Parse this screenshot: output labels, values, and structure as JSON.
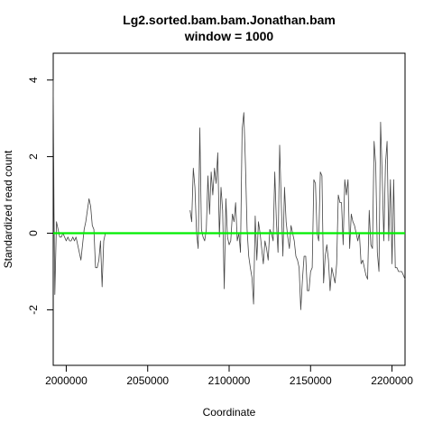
{
  "chart_data": {
    "type": "line",
    "title": "Lg2.sorted.bam.bam.Jonathan.bam",
    "subtitle": "window = 1000",
    "xlabel": "Coordinate",
    "ylabel": "Standardized read count",
    "xlim": [
      1992000,
      2208000
    ],
    "ylim": [
      -3.45,
      4.7
    ],
    "xticks": [
      2000000,
      2050000,
      2100000,
      2150000,
      2200000
    ],
    "xtick_labels": [
      "2000000",
      "2050000",
      "2100000",
      "2150000",
      "2200000"
    ],
    "yticks": [
      -2,
      0,
      2,
      4
    ],
    "ytick_labels": [
      "-2",
      "0",
      "2",
      "4"
    ],
    "grid": false,
    "baseline": {
      "y": 0,
      "color": "#00ee00"
    },
    "line_color": "#444444",
    "segments": [
      {
        "x": [
          1992000,
          1992500,
          1993000,
          1994000,
          1995000,
          1996000,
          1997000,
          1998000,
          1999000,
          2000000,
          2001000,
          2002000,
          2003000,
          2004000,
          2005000,
          2006000,
          2007000,
          2008000,
          2009000,
          2010000,
          2011000,
          2012000,
          2013000,
          2014000,
          2015000,
          2016000,
          2017000,
          2018000,
          2019000,
          2020000,
          2021000,
          2022000,
          2023000,
          2024000,
          2025000,
          2026000,
          2027000
        ],
        "y": [
          4.0,
          0.5,
          -1.6,
          0.3,
          0.1,
          -0.1,
          -0.1,
          0.0,
          -0.1,
          -0.2,
          -0.1,
          -0.2,
          -0.2,
          -0.1,
          -0.2,
          -0.1,
          -0.3,
          -0.5,
          -0.7,
          -0.3,
          0.1,
          0.3,
          0.6,
          0.9,
          0.7,
          0.2,
          0.1,
          -0.9,
          -0.9,
          -0.7,
          -0.2,
          -1.4,
          -0.2,
          0.0,
          0.0,
          0.0,
          0.0
        ]
      },
      {
        "x": [
          2076000,
          2077000,
          2078000,
          2079000,
          2080000,
          2081000,
          2082000,
          2083000,
          2084000,
          2085000,
          2086000,
          2087000,
          2088000,
          2089000,
          2090000,
          2091000,
          2092000,
          2093000,
          2094000,
          2095000,
          2096000,
          2097000,
          2098000,
          2099000,
          2100000,
          2101000,
          2102000,
          2103000,
          2104000,
          2105000,
          2106000,
          2107000,
          2108000,
          2109000,
          2110000,
          2111000,
          2112000,
          2113000,
          2114000,
          2115000,
          2116000,
          2117000,
          2118000,
          2119000,
          2120000,
          2121000,
          2122000,
          2123000,
          2124000,
          2125000,
          2126000,
          2127000,
          2128000,
          2129000,
          2130000,
          2131000,
          2132000,
          2133000,
          2134000,
          2135000,
          2136000,
          2137000,
          2138000,
          2139000,
          2140000,
          2141000,
          2142000,
          2143000,
          2144000,
          2145000,
          2146000,
          2147000,
          2148000,
          2149000,
          2150000,
          2151000,
          2152000,
          2153000,
          2154000,
          2155000,
          2156000,
          2157000,
          2158000,
          2159000,
          2160000,
          2161000,
          2162000,
          2163000,
          2164000,
          2165000,
          2166000,
          2167000,
          2168000,
          2169000,
          2170000,
          2171000,
          2172000,
          2173000,
          2174000,
          2175000,
          2176000,
          2177000,
          2178000,
          2179000,
          2180000,
          2181000,
          2182000,
          2183000,
          2184000,
          2185000,
          2186000,
          2187000,
          2188000,
          2189000,
          2190000,
          2191000,
          2192000,
          2193000,
          2194000,
          2195000,
          2196000,
          2197000,
          2198000,
          2199000,
          2200000,
          2201000,
          2202000,
          2203000,
          2204000,
          2205000,
          2206000,
          2207000,
          2208000
        ],
        "y": [
          0.6,
          0.3,
          1.7,
          1.2,
          0.0,
          -0.4,
          2.75,
          0.1,
          -0.1,
          -0.2,
          0.1,
          1.5,
          0.5,
          1.6,
          1.0,
          1.7,
          1.3,
          2.1,
          -0.1,
          1.2,
          0.6,
          -1.45,
          0.9,
          -0.1,
          -0.3,
          -0.2,
          0.5,
          0.3,
          0.8,
          -0.2,
          0.0,
          -0.5,
          2.7,
          3.15,
          1.8,
          0.1,
          -0.6,
          -0.9,
          -1.15,
          -1.85,
          0.45,
          -0.7,
          0.3,
          0.0,
          -0.4,
          -0.8,
          -0.2,
          -0.4,
          -0.7,
          0.1,
          0.0,
          -0.2,
          1.6,
          0.3,
          -0.5,
          2.3,
          0.8,
          -0.6,
          1.2,
          0.3,
          -0.1,
          -0.4,
          0.2,
          0.0,
          -0.2,
          -0.6,
          -0.7,
          -0.9,
          -2.0,
          -1.2,
          -0.6,
          -0.6,
          -1.5,
          -1.5,
          -1.0,
          -0.9,
          1.4,
          1.3,
          0.0,
          -0.2,
          1.6,
          1.5,
          -1.3,
          -0.6,
          -0.3,
          -0.7,
          -1.5,
          -0.9,
          -1.1,
          -1.3,
          -0.8,
          1.0,
          0.8,
          0.8,
          -0.3,
          1.4,
          1.0,
          1.4,
          -0.4,
          0.5,
          0.3,
          0.2,
          0.0,
          -0.2,
          0.0,
          -0.8,
          -0.7,
          -0.9,
          -1.1,
          -1.2,
          0.6,
          -0.3,
          -0.4,
          2.4,
          1.8,
          -0.5,
          -1.0,
          2.9,
          1.5,
          -0.2,
          1.8,
          2.4,
          -0.2,
          1.4,
          -0.8,
          1.4,
          -0.9,
          -0.9,
          -1.0,
          -1.0,
          -1.0,
          -1.1,
          -1.2
        ]
      }
    ]
  }
}
